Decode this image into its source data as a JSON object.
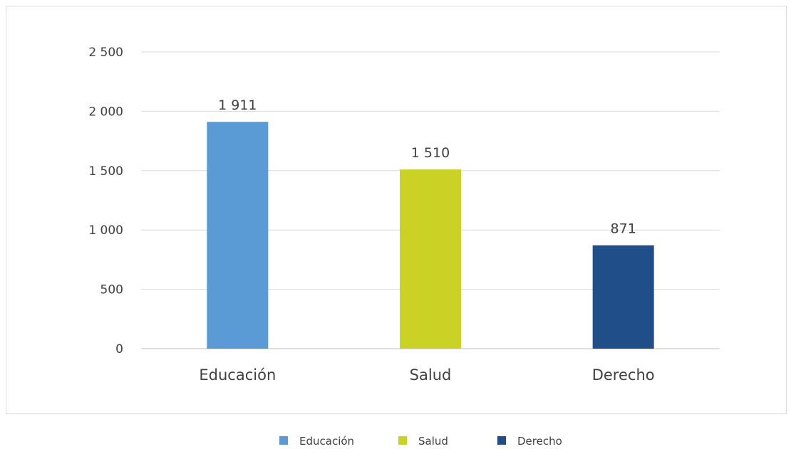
{
  "chart_data": {
    "type": "bar",
    "categories": [
      "Educación",
      "Salud",
      "Derecho"
    ],
    "values": [
      1911,
      1510,
      871
    ],
    "value_labels": [
      "1 911",
      "1 510",
      "871"
    ],
    "colors": [
      "#5b9bd5",
      "#c9d225",
      "#1f4e89"
    ],
    "ylim": [
      0,
      2500
    ],
    "yticks": [
      0,
      500,
      1000,
      1500,
      2000,
      2500
    ],
    "ytick_labels": [
      "0",
      "500",
      "1 000",
      "1 500",
      "2 000",
      "2 500"
    ],
    "grid": true,
    "legend": {
      "position": "bottom",
      "items": [
        "Educación",
        "Salud",
        "Derecho"
      ]
    }
  }
}
